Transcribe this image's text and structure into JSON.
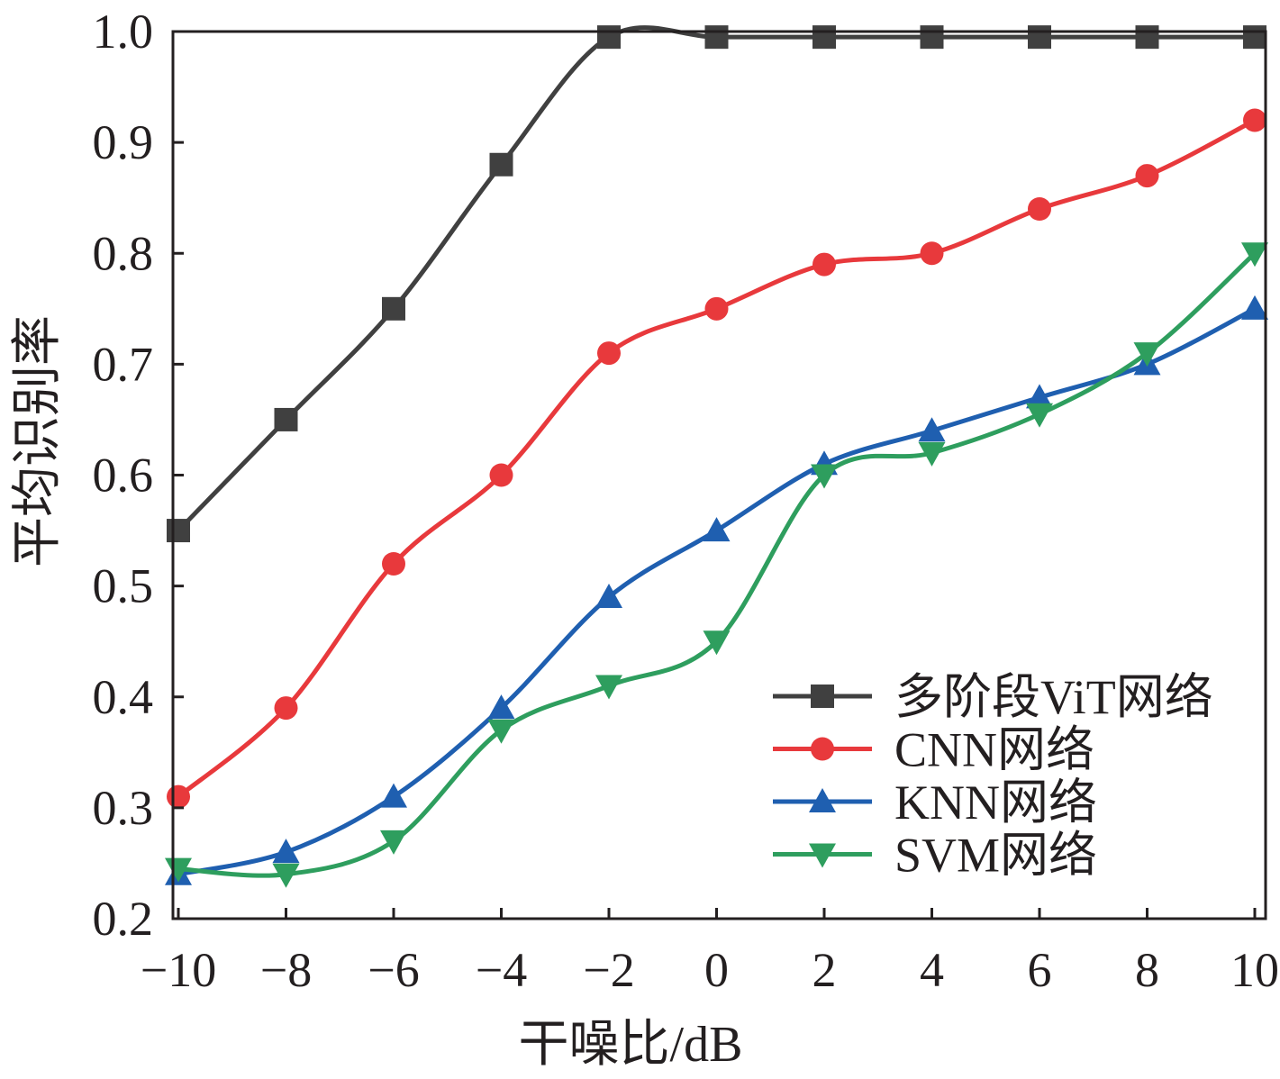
{
  "chart_data": {
    "type": "line",
    "title": "",
    "xlabel": "干噪比/dB",
    "ylabel": "平均识别率",
    "x": [
      -10,
      -8,
      -6,
      -4,
      -2,
      0,
      2,
      4,
      6,
      8,
      10
    ],
    "xlim": [
      -10,
      10
    ],
    "ylim": [
      0.2,
      1.0
    ],
    "xticks": [
      "−10",
      "−8",
      "−6",
      "−4",
      "−2",
      "0",
      "2",
      "4",
      "6",
      "8",
      "10"
    ],
    "yticks": [
      "0.2",
      "0.3",
      "0.4",
      "0.5",
      "0.6",
      "0.7",
      "0.8",
      "0.9",
      "1.0"
    ],
    "ytick_values": [
      0.2,
      0.3,
      0.4,
      0.5,
      0.6,
      0.7,
      0.8,
      0.9,
      1.0
    ],
    "grid": false,
    "legend_position": "bottom-right",
    "series": [
      {
        "name": "多阶段ViT网络",
        "color": "#404040",
        "marker": "square",
        "values": [
          0.55,
          0.65,
          0.75,
          0.88,
          0.995,
          0.995,
          0.995,
          0.995,
          0.995,
          0.995,
          0.995
        ]
      },
      {
        "name": "CNN网络",
        "color": "#e8393c",
        "marker": "circle",
        "values": [
          0.31,
          0.39,
          0.52,
          0.6,
          0.71,
          0.75,
          0.79,
          0.8,
          0.84,
          0.87,
          0.92
        ]
      },
      {
        "name": "KNN网络",
        "color": "#1f5fb0",
        "marker": "triangle-up",
        "values": [
          0.24,
          0.26,
          0.31,
          0.39,
          0.49,
          0.55,
          0.61,
          0.64,
          0.67,
          0.7,
          0.75
        ]
      },
      {
        "name": "SVM网络",
        "color": "#2e9e5e",
        "marker": "triangle-down",
        "values": [
          0.245,
          0.24,
          0.27,
          0.37,
          0.41,
          0.45,
          0.6,
          0.62,
          0.655,
          0.71,
          0.8
        ]
      }
    ]
  }
}
